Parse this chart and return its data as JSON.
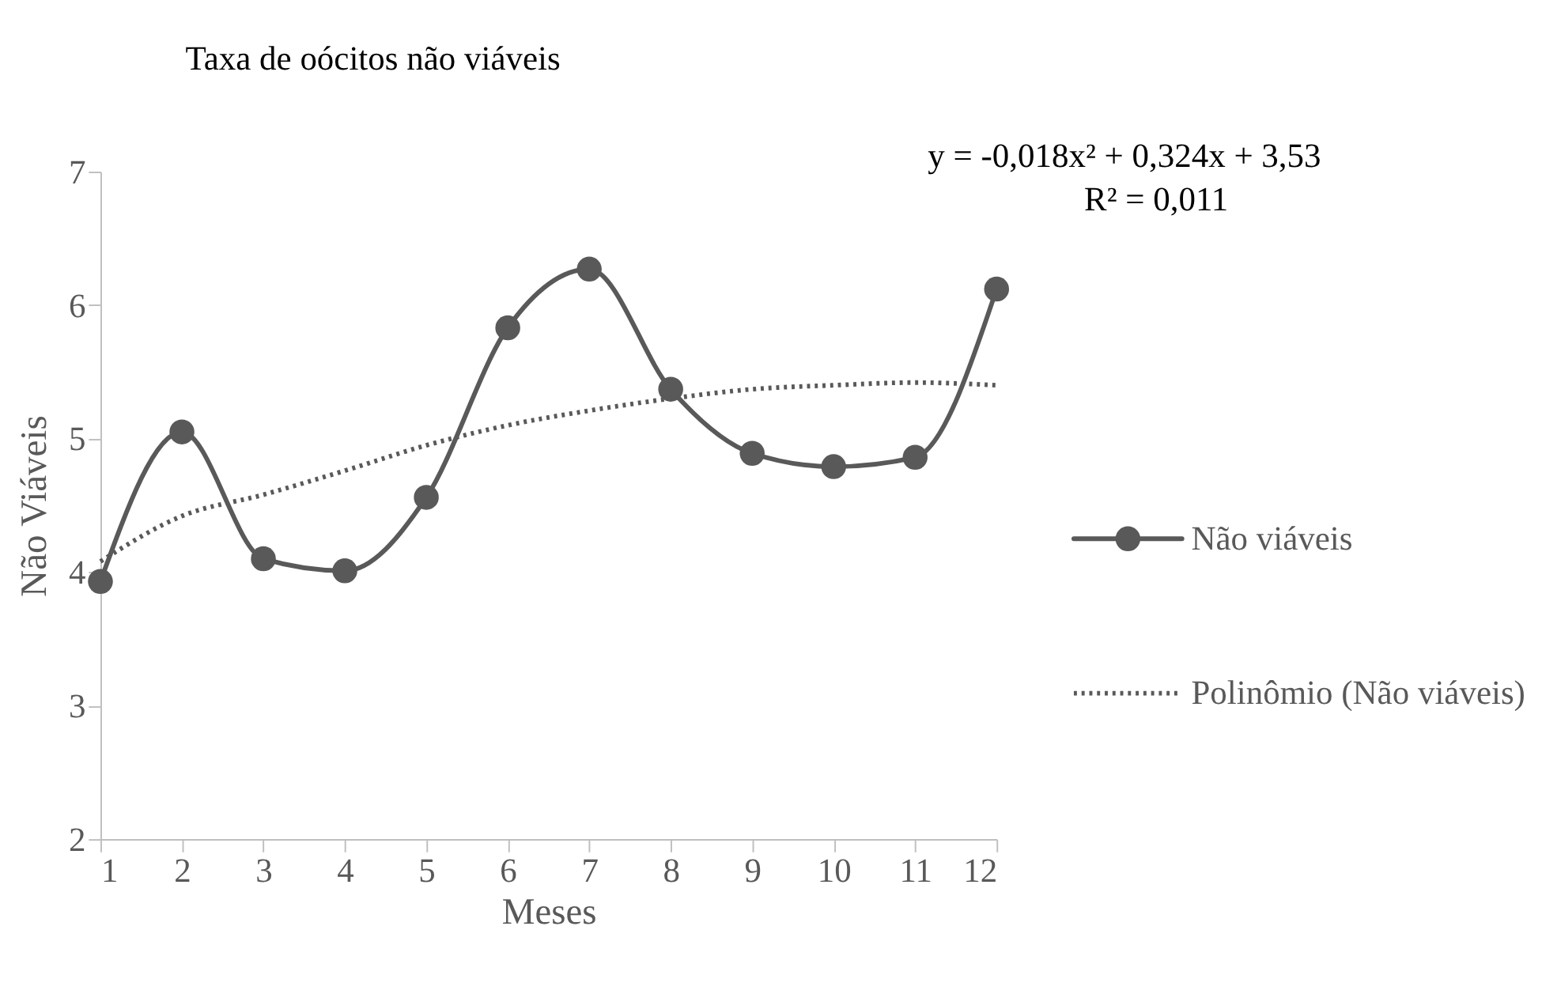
{
  "chart_data": {
    "type": "line",
    "title": "Taxa de oócitos não viáveis",
    "xlabel": "Meses",
    "ylabel": "Não Viáveis",
    "x": [
      1,
      2,
      3,
      4,
      5,
      6,
      7,
      8,
      9,
      10,
      11,
      12
    ],
    "series": [
      {
        "name": "Não viáveis",
        "color": "#595959",
        "marker": "circle",
        "line_style": "solid",
        "values": [
          3.93,
          5.05,
          4.1,
          4.01,
          4.56,
          5.83,
          6.27,
          5.37,
          4.89,
          4.79,
          4.86,
          6.12
        ]
      },
      {
        "name": "Polinômio (Não viáveis)",
        "color": "#595959",
        "marker": "none",
        "line_style": "dotted",
        "type": "line",
        "x": [
          1,
          2,
          3,
          4,
          5,
          6,
          7,
          8,
          9,
          10,
          11,
          12
        ],
        "values": [
          4.08,
          4.42,
          4.58,
          4.76,
          4.95,
          5.1,
          5.21,
          5.3,
          5.37,
          5.4,
          5.42,
          5.4
        ]
      }
    ],
    "xlim": [
      1,
      12
    ],
    "xticks": [
      1,
      2,
      3,
      4,
      5,
      6,
      7,
      8,
      9,
      10,
      11,
      12
    ],
    "ylim": [
      2,
      7
    ],
    "yticks": [
      2,
      3,
      4,
      5,
      6,
      7
    ],
    "grid": false,
    "legend": "right",
    "annotations": [
      "y = -0,018x² + 0,324x + 3,53",
      "R² = 0,011"
    ]
  }
}
